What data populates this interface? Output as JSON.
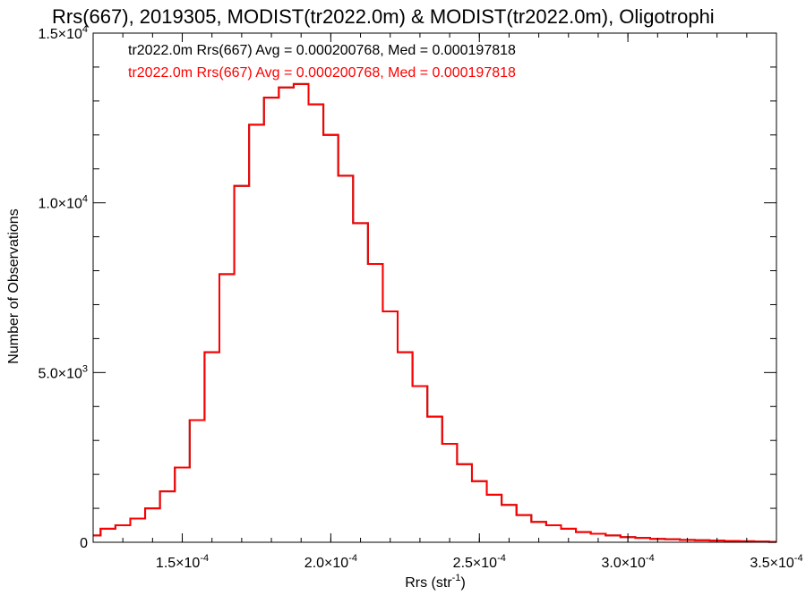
{
  "chart_data": {
    "type": "histogram",
    "title": "Rrs(667), 2019305, MODIST(tr2022.0m) & MODIST(tr2022.0m), Oligotrophi",
    "xlabel": {
      "base": "Rrs (str",
      "sup": "-1",
      "tail": ")"
    },
    "ylabel": "Number of Observations",
    "xlim": [
      0.00012,
      0.00035
    ],
    "ylim": [
      0,
      15000
    ],
    "grid": false,
    "x_ticks": [
      {
        "value": 0.00015,
        "mant": "1.5",
        "exp": "-4"
      },
      {
        "value": 0.0002,
        "mant": "2.0",
        "exp": "-4"
      },
      {
        "value": 0.00025,
        "mant": "2.5",
        "exp": "-4"
      },
      {
        "value": 0.0003,
        "mant": "3.0",
        "exp": "-4"
      },
      {
        "value": 0.00035,
        "mant": "3.5",
        "exp": "-4"
      }
    ],
    "y_ticks": [
      {
        "value": 0,
        "plain": "0"
      },
      {
        "value": 5000,
        "mant": "5.0",
        "exp": "3"
      },
      {
        "value": 10000,
        "mant": "1.0",
        "exp": "4"
      },
      {
        "value": 15000,
        "mant": "1.5",
        "exp": "4"
      }
    ],
    "annotations": [
      {
        "text": "tr2022.0m Rrs(667) Avg = 0.000200768, Med = 0.000197818",
        "color": "#000000"
      },
      {
        "text": "tr2022.0m Rrs(667) Avg = 0.000200768, Med = 0.000197818",
        "color": "#ff0000"
      }
    ],
    "series": [
      {
        "color": "#000000"
      },
      {
        "color": "#ff0000"
      }
    ],
    "x": [
      0.00012,
      0.000125,
      0.00013,
      0.000135,
      0.00014,
      0.000145,
      0.00015,
      0.000155,
      0.00016,
      0.000165,
      0.00017,
      0.000175,
      0.00018,
      0.000185,
      0.00019,
      0.000195,
      0.0002,
      0.000205,
      0.00021,
      0.000215,
      0.00022,
      0.000225,
      0.00023,
      0.000235,
      0.00024,
      0.000245,
      0.00025,
      0.000255,
      0.00026,
      0.000265,
      0.00027,
      0.000275,
      0.00028,
      0.000285,
      0.00029,
      0.000295,
      0.0003,
      0.000305,
      0.00031,
      0.000315,
      0.00032,
      0.000325,
      0.00033,
      0.000335,
      0.00034,
      0.000345,
      0.00035
    ],
    "y": [
      200,
      400,
      500,
      700,
      1000,
      1500,
      2200,
      3600,
      5600,
      7900,
      10500,
      12300,
      13100,
      13400,
      13500,
      12900,
      12000,
      10800,
      9400,
      8200,
      6800,
      5600,
      4600,
      3700,
      2900,
      2300,
      1800,
      1400,
      1100,
      800,
      600,
      500,
      400,
      300,
      250,
      200,
      150,
      130,
      100,
      90,
      70,
      60,
      50,
      40,
      30,
      20,
      10
    ]
  }
}
